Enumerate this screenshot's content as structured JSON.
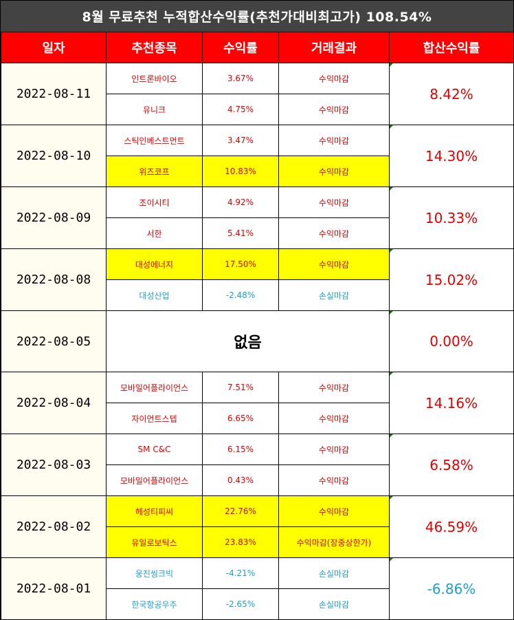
{
  "title": "8월 무료추천 누적합산수익률(추천가대비최고가) 108.54%",
  "headers": [
    "일자",
    "추천종목",
    "수익률",
    "거래결과",
    "합산수익률"
  ],
  "colors": {
    "title_bg": "#434343",
    "header_bg": "#ff0000",
    "profit": "#e00000",
    "loss": "#1b9fd3",
    "highlight": "#ffff00"
  },
  "groups": [
    {
      "date": "2022-08-11",
      "total": "8.42%",
      "rows": [
        {
          "stock": "인트론바이오",
          "rate": "3.67%",
          "result": "수익마감"
        },
        {
          "stock": "유니크",
          "rate": "4.75%",
          "result": "수익마감"
        }
      ]
    },
    {
      "date": "2022-08-10",
      "total": "14.30%",
      "rows": [
        {
          "stock": "스틱인베스트먼트",
          "rate": "3.47%",
          "result": "수익마감"
        },
        {
          "stock": "위즈코프",
          "rate": "10.83%",
          "result": "수익마감"
        }
      ]
    },
    {
      "date": "2022-08-09",
      "total": "10.33%",
      "rows": [
        {
          "stock": "조이시티",
          "rate": "4.92%",
          "result": "수익마감"
        },
        {
          "stock": "서한",
          "rate": "5.41%",
          "result": "수익마감"
        }
      ]
    },
    {
      "date": "2022-08-08",
      "total": "15.02%",
      "rows": [
        {
          "stock": "대성에너지",
          "rate": "17.50%",
          "result": "수익마감"
        },
        {
          "stock": "대성산업",
          "rate": "-2.48%",
          "result": "손실마감"
        }
      ]
    },
    {
      "date": "2022-08-05",
      "total": "0.00%",
      "none": "없음"
    },
    {
      "date": "2022-08-04",
      "total": "14.16%",
      "rows": [
        {
          "stock": "모바일어플라이언스",
          "rate": "7.51%",
          "result": "수익마감"
        },
        {
          "stock": "자이언트스텝",
          "rate": "6.65%",
          "result": "수익마감"
        }
      ]
    },
    {
      "date": "2022-08-03",
      "total": "6.58%",
      "rows": [
        {
          "stock": "SM C&C",
          "rate": "6.15%",
          "result": "수익마감"
        },
        {
          "stock": "모바일어플라이언스",
          "rate": "0.43%",
          "result": "수익마감"
        }
      ]
    },
    {
      "date": "2022-08-02",
      "total": "46.59%",
      "rows": [
        {
          "stock": "헤성티피씨",
          "rate": "22.76%",
          "result": "수익마감"
        },
        {
          "stock": "유일로보틱스",
          "rate": "23.83%",
          "result": "수익마감(장중상한가)"
        }
      ]
    },
    {
      "date": "2022-08-01",
      "total": "-6.86%",
      "rows": [
        {
          "stock": "웅진씽크빅",
          "rate": "-4.21%",
          "result": "손실마감"
        },
        {
          "stock": "한국항공우주",
          "rate": "-2.65%",
          "result": "손실마감"
        }
      ]
    }
  ]
}
